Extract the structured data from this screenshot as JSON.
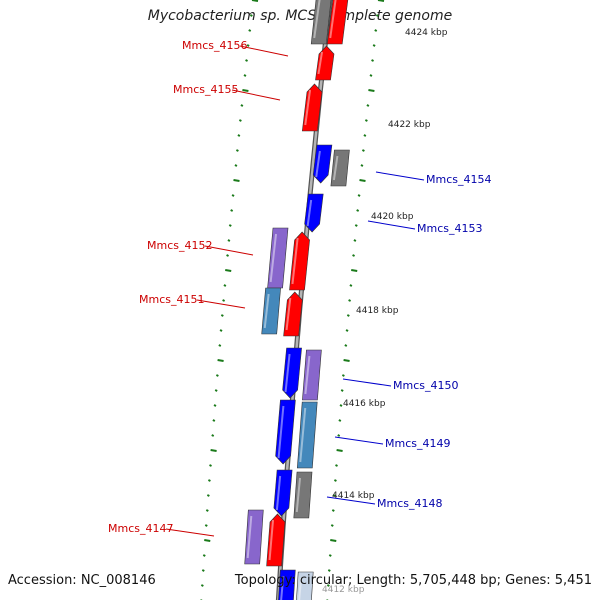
{
  "title": "Mycobacterium sp. MCS, complete genome",
  "accession": "Accession: NC_008146",
  "topology": "Topology: circular; Length: 5,705,448 bp; Genes: 5,451",
  "colors": {
    "forward": "#ff0000",
    "reverse": "#0000ff",
    "purple": "#8866cc",
    "steel": "#4488bb",
    "gray": "#777777",
    "backbone": "#888888",
    "tick": "#1a7a1a"
  },
  "tick_labels": [
    "4424 kbp",
    "4422 kbp",
    "4420 kbp",
    "4418 kbp",
    "4416 kbp",
    "4414 kbp",
    "4412 kbp"
  ],
  "labels_left": [
    "Mmcs_4156",
    "Mmcs_4155",
    "Mmcs_4152",
    "Mmcs_4151",
    "Mmcs_4147"
  ],
  "labels_right": [
    "Mmcs_4154",
    "Mmcs_4153",
    "Mmcs_4150",
    "Mmcs_4149",
    "Mmcs_4148"
  ]
}
